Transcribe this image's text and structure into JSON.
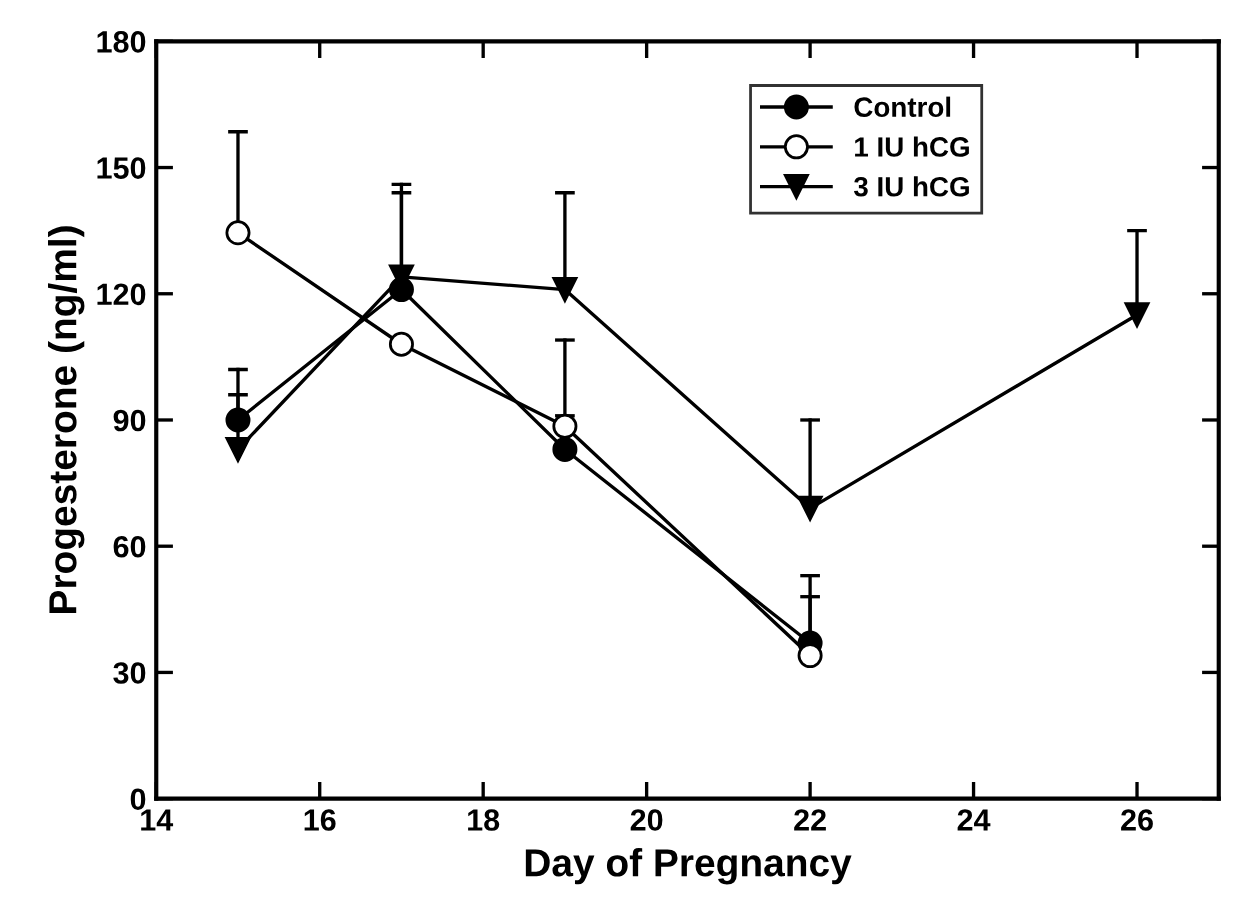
{
  "chart_data": {
    "type": "line",
    "xlabel": "Day of Pregnancy",
    "ylabel": "Progesterone (ng/ml)",
    "xlim": [
      14,
      27
    ],
    "xticks": [
      14,
      16,
      18,
      20,
      22,
      24,
      26
    ],
    "ylim": [
      0,
      180
    ],
    "yticks": [
      0,
      30,
      60,
      90,
      120,
      150,
      180
    ],
    "grid": false,
    "legend": "top right",
    "line_style": "solid",
    "series": [
      {
        "name": "Control",
        "color": "#000000",
        "marker": "circle",
        "x": [
          15,
          17,
          19,
          22
        ],
        "values": [
          90,
          121,
          83,
          37
        ],
        "errors": [
          [
            90,
            102
          ],
          [
            121,
            144
          ],
          [
            83,
            91
          ],
          [
            37,
            53
          ]
        ]
      },
      {
        "name": "1 IU hCG",
        "color": "#000000",
        "marker": "circle",
        "x": [
          15,
          17,
          19,
          22
        ],
        "values": [
          134.5,
          108,
          88.5,
          34
        ],
        "errors": [
          [
            134.5,
            158.5
          ],
          null,
          [
            88.5,
            109
          ],
          [
            34,
            48
          ]
        ]
      },
      {
        "name": "3 IU hCG",
        "color": "#000000",
        "marker": "triangle",
        "x": [
          15,
          17,
          19,
          22,
          26
        ],
        "values": [
          83,
          124,
          121,
          69,
          115
        ],
        "errors": [
          [
            83,
            96
          ],
          [
            124,
            146
          ],
          [
            121,
            144
          ],
          [
            69,
            90
          ],
          [
            115,
            135
          ]
        ]
      }
    ]
  }
}
